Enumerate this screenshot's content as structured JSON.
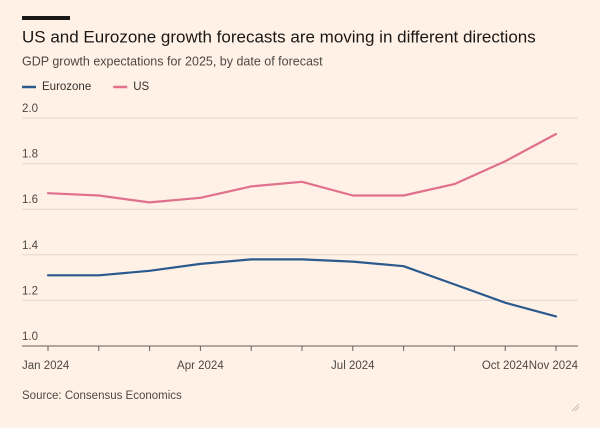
{
  "chart_data": {
    "type": "line",
    "title": "US and Eurozone growth forecasts are moving in different directions",
    "subtitle": "GDP growth expectations for 2025, by date of forecast",
    "source": "Source: Consensus Economics",
    "categories": [
      "Jan 2024",
      null,
      null,
      "Apr 2024",
      null,
      null,
      "Jul 2024",
      null,
      null,
      "Oct 2024",
      "Nov 2024"
    ],
    "series": [
      {
        "name": "Eurozone",
        "color": "#2a5a8e",
        "values": [
          1.31,
          1.31,
          1.33,
          1.36,
          1.38,
          1.38,
          1.37,
          1.35,
          1.27,
          1.19,
          1.13
        ]
      },
      {
        "name": "US",
        "color": "#e0708c",
        "values": [
          1.67,
          1.66,
          1.63,
          1.65,
          1.7,
          1.72,
          1.66,
          1.66,
          1.71,
          1.81,
          1.93
        ]
      }
    ],
    "ylim": [
      1,
      2
    ],
    "yticks": [
      {
        "value": 1,
        "label": "1.0"
      },
      1.2,
      1.4,
      1.6,
      1.8,
      {
        "value": 2,
        "label": "2.0"
      }
    ],
    "grid": true
  }
}
